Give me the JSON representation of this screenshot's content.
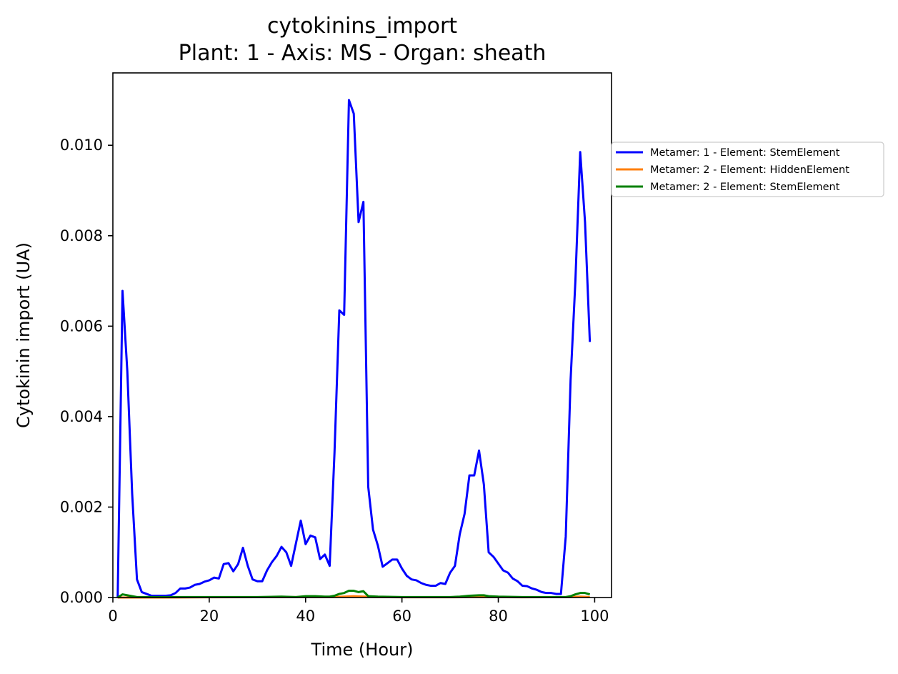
{
  "chart_data": {
    "type": "line",
    "title": "cytokinins_import",
    "subtitle": "Plant: 1 - Axis: MS - Organ: sheath",
    "xlabel": "Time (Hour)",
    "ylabel": "Cytokinin import (UA)",
    "xlim": [
      0,
      103.5
    ],
    "ylim": [
      0,
      0.0116
    ],
    "xticks": [
      0,
      20,
      40,
      60,
      80,
      100
    ],
    "xtick_labels": [
      "0",
      "20",
      "40",
      "60",
      "80",
      "100"
    ],
    "yticks": [
      0,
      0.002,
      0.004,
      0.006,
      0.008,
      0.01
    ],
    "ytick_labels": [
      "0.000",
      "0.002",
      "0.004",
      "0.006",
      "0.008",
      "0.010"
    ],
    "grid": false,
    "legend_position": "outside right, upper",
    "series": [
      {
        "name": "Metamer: 1 - Element: StemElement",
        "color": "#0000ff",
        "x": [
          1,
          2,
          3,
          4,
          5,
          6,
          7,
          8,
          9,
          10,
          11,
          12,
          13,
          14,
          15,
          16,
          17,
          18,
          19,
          20,
          21,
          22,
          23,
          24,
          25,
          26,
          27,
          28,
          29,
          30,
          31,
          32,
          33,
          34,
          35,
          36,
          37,
          38,
          39,
          40,
          41,
          42,
          43,
          44,
          45,
          46,
          47,
          48,
          49,
          50,
          51,
          52,
          53,
          54,
          55,
          56,
          57,
          58,
          59,
          60,
          61,
          62,
          63,
          64,
          65,
          66,
          67,
          68,
          69,
          70,
          71,
          72,
          73,
          74,
          75,
          76,
          77,
          78,
          79,
          80,
          81,
          82,
          83,
          84,
          85,
          86,
          87,
          88,
          89,
          90,
          91,
          92,
          93,
          94,
          95,
          96,
          97,
          98,
          99
        ],
        "y": [
          0.0,
          0.00678,
          0.005,
          0.0023,
          0.0004,
          0.00012,
          8e-05,
          4e-05,
          4e-05,
          4e-05,
          4e-05,
          5e-05,
          0.0001,
          0.0002,
          0.0002,
          0.00022,
          0.00028,
          0.0003,
          0.00035,
          0.00038,
          0.00044,
          0.00042,
          0.00074,
          0.00076,
          0.00058,
          0.00074,
          0.0011,
          0.0007,
          0.0004,
          0.00036,
          0.00036,
          0.0006,
          0.00078,
          0.00092,
          0.00112,
          0.001,
          0.0007,
          0.0012,
          0.0017,
          0.00118,
          0.00137,
          0.00133,
          0.00085,
          0.00095,
          0.0007,
          0.0032,
          0.00635,
          0.00625,
          0.011,
          0.0107,
          0.0083,
          0.00875,
          0.00245,
          0.0015,
          0.00115,
          0.00068,
          0.00076,
          0.00084,
          0.00084,
          0.00064,
          0.00048,
          0.0004,
          0.00038,
          0.00032,
          0.00028,
          0.00026,
          0.00026,
          0.00032,
          0.0003,
          0.00055,
          0.0007,
          0.0014,
          0.00185,
          0.0027,
          0.0027,
          0.00325,
          0.0025,
          0.001,
          0.0009,
          0.00075,
          0.0006,
          0.00055,
          0.00042,
          0.00036,
          0.00026,
          0.00025,
          0.0002,
          0.00017,
          0.00012,
          0.0001,
          0.0001,
          8e-05,
          8e-05,
          0.00135,
          0.0048,
          0.007,
          0.00985,
          0.0083,
          0.00565
        ]
      },
      {
        "name": "Metamer: 2 - Element: HiddenElement",
        "color": "#ff7f0e",
        "x": [
          1,
          5,
          10,
          20,
          30,
          40,
          45,
          48,
          50,
          52,
          55,
          60,
          70,
          75,
          78,
          85,
          95,
          97,
          99
        ],
        "y": [
          0.0,
          0.0,
          0.0,
          5e-06,
          8e-06,
          1e-05,
          1e-05,
          2e-05,
          3e-05,
          2e-05,
          1e-05,
          5e-06,
          5e-06,
          1e-05,
          1e-05,
          5e-06,
          1e-05,
          2e-05,
          1e-05
        ]
      },
      {
        "name": "Metamer: 2 - Element: StemElement",
        "color": "#008000",
        "x": [
          1,
          2,
          3,
          4,
          5,
          6,
          8,
          10,
          15,
          20,
          25,
          30,
          35,
          38,
          40,
          42,
          44,
          45,
          46,
          47,
          48,
          49,
          50,
          51,
          52,
          53,
          55,
          60,
          65,
          70,
          72,
          74,
          76,
          77,
          78,
          80,
          85,
          90,
          93,
          94,
          95,
          96,
          97,
          98,
          99
        ],
        "y": [
          0.0,
          7e-05,
          5e-05,
          3e-05,
          1e-05,
          1e-05,
          1e-05,
          1e-05,
          1e-05,
          1e-05,
          1e-05,
          1e-05,
          2e-05,
          1e-05,
          3e-05,
          3e-05,
          2e-05,
          2e-05,
          4e-05,
          8e-05,
          0.0001,
          0.00015,
          0.00015,
          0.00012,
          0.00014,
          3e-05,
          2e-05,
          1e-05,
          1e-05,
          1e-05,
          2e-05,
          4e-05,
          5e-05,
          5e-05,
          3e-05,
          2e-05,
          1e-05,
          1e-05,
          1e-05,
          1e-05,
          3e-05,
          7e-05,
          0.0001,
          0.0001,
          7e-05
        ]
      }
    ]
  }
}
